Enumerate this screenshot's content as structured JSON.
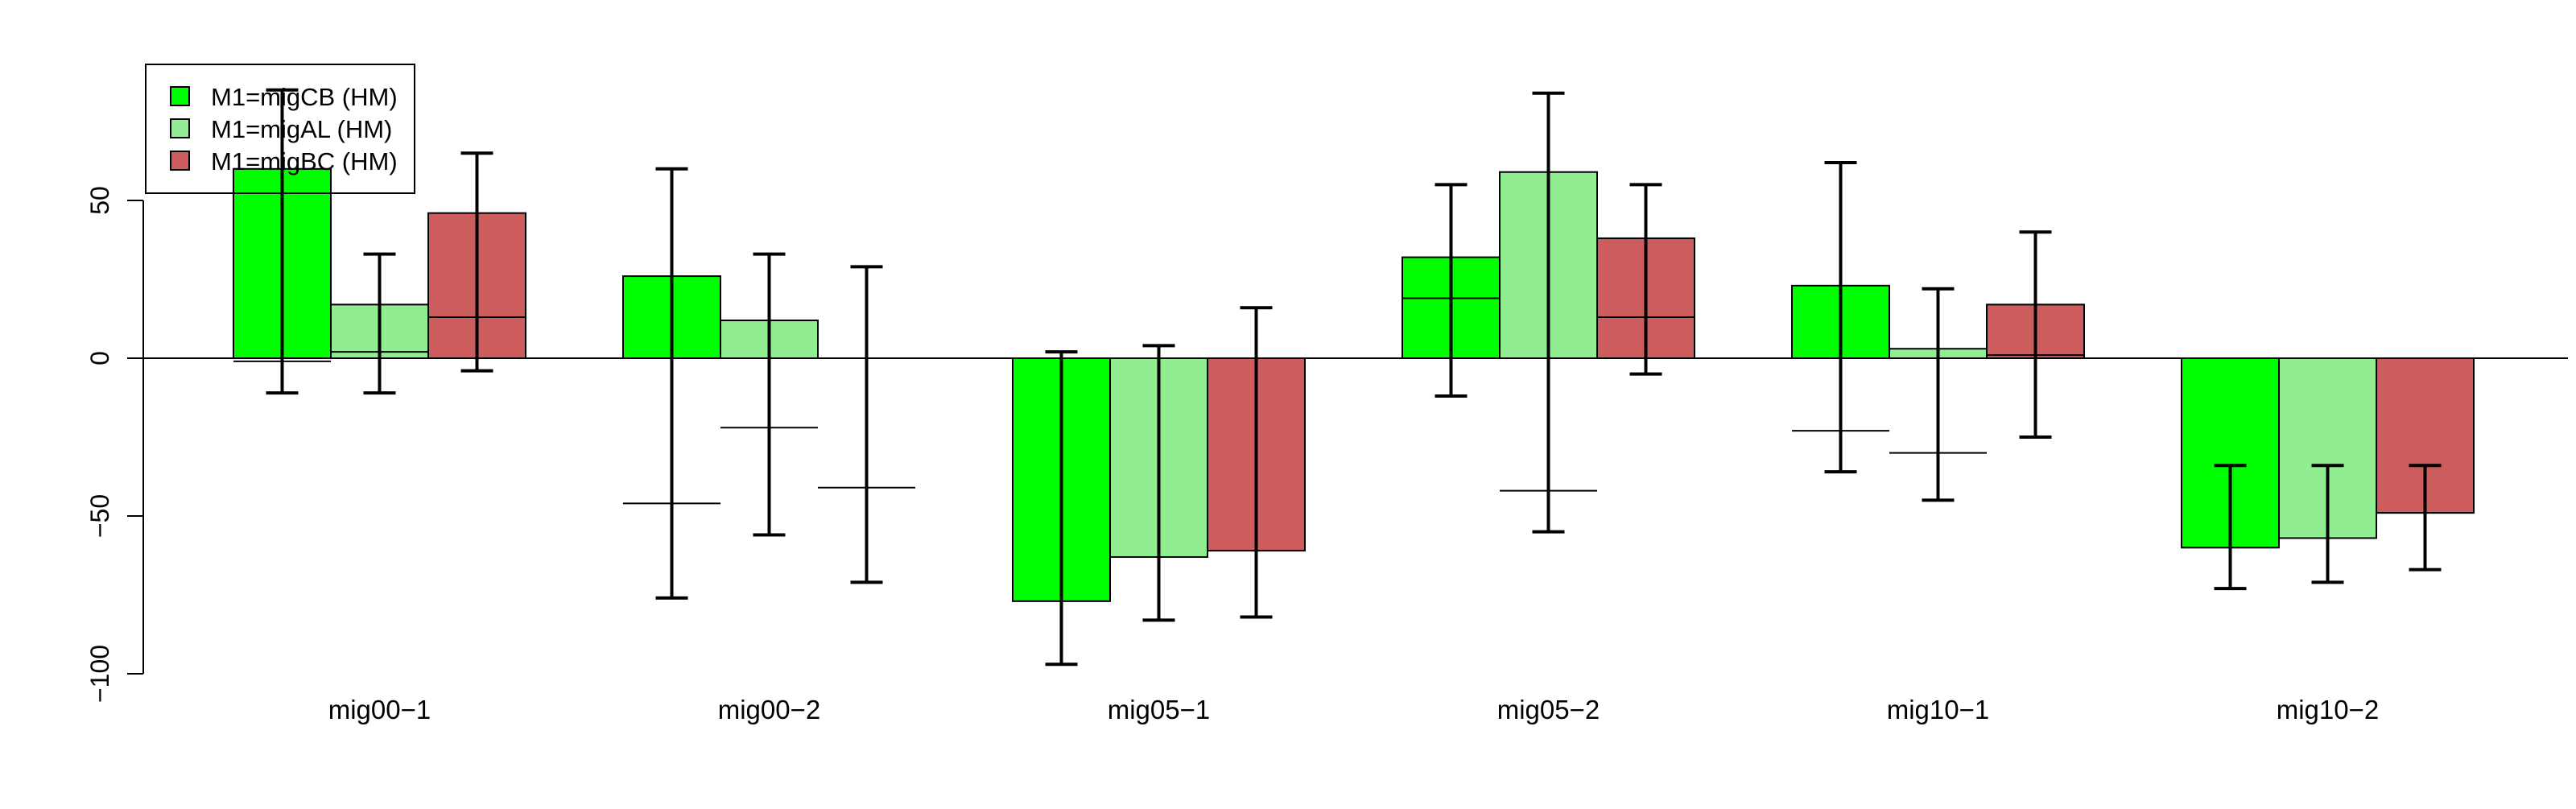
{
  "chart_data": {
    "type": "bar",
    "categories": [
      "mig00−1",
      "mig00−2",
      "mig05−1",
      "mig05−2",
      "mig10−1",
      "mig10−2"
    ],
    "series": [
      {
        "name": "M1=migCB (HM)",
        "color": "#00ff00",
        "values": [
          60,
          26,
          -77,
          32,
          23,
          -60
        ],
        "inner_line": [
          -1,
          -46,
          0,
          19,
          -23,
          -60
        ],
        "error_low": [
          -11,
          -76,
          -97,
          -12,
          -36,
          -73
        ],
        "error_high": [
          85,
          60,
          2,
          55,
          62,
          -34
        ]
      },
      {
        "name": "M1=migAL (HM)",
        "color": "#90ee90",
        "values": [
          17,
          12,
          -63,
          59,
          3,
          -57
        ],
        "inner_line": [
          2,
          -22,
          0,
          -42,
          -30,
          -57
        ],
        "error_low": [
          -11,
          -56,
          -83,
          -55,
          -45,
          -71
        ],
        "error_high": [
          33,
          33,
          4,
          84,
          22,
          -34
        ]
      },
      {
        "name": "M1=migBC (HM)",
        "color": "#cd5c5c",
        "values": [
          46,
          0,
          -61,
          38,
          17,
          -49
        ],
        "inner_line": [
          13,
          -41,
          0,
          13,
          1,
          -49
        ],
        "error_low": [
          -4,
          -71,
          -82,
          -5,
          -25,
          -67
        ],
        "error_high": [
          65,
          29,
          16,
          55,
          40,
          -34
        ]
      }
    ],
    "y_ticks": [
      -100,
      -50,
      0,
      50
    ],
    "y_tick_labels": [
      "−100",
      "−50",
      "0",
      "50"
    ],
    "ylim": [
      -100,
      85
    ],
    "reference_line": 0,
    "title": "",
    "xlabel": "",
    "ylabel": "",
    "legend_position": "top-left",
    "grid": false
  }
}
